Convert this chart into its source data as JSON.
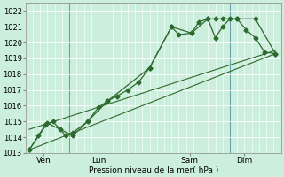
{
  "xlabel": "Pression niveau de la mer( hPa )",
  "bg_color": "#cceedd",
  "grid_color": "#aaddcc",
  "line_color": "#2d6a2d",
  "ylim": [
    1013,
    1022.5
  ],
  "xlim": [
    0,
    7.0
  ],
  "yticks": [
    1013,
    1014,
    1015,
    1016,
    1017,
    1018,
    1019,
    1020,
    1021,
    1022
  ],
  "xtick_labels": [
    "Ven",
    "Lun",
    "Sam",
    "Dim"
  ],
  "xtick_positions": [
    0.5,
    2.0,
    4.5,
    6.0
  ],
  "vlines_x": [
    1.2,
    3.5,
    5.6
  ],
  "series1_x": [
    0.1,
    0.35,
    0.55,
    0.75,
    0.95,
    1.1,
    1.3,
    1.7,
    2.0,
    2.25,
    2.5,
    2.8,
    3.1,
    3.4,
    4.0,
    4.2,
    4.55,
    4.75,
    5.0,
    5.2,
    5.4,
    5.6,
    5.8,
    6.05,
    6.3,
    6.55,
    6.85
  ],
  "series1_y": [
    1013.2,
    1014.1,
    1014.8,
    1015.0,
    1014.5,
    1014.1,
    1014.3,
    1015.0,
    1015.9,
    1016.3,
    1016.6,
    1017.0,
    1017.5,
    1018.4,
    1021.0,
    1020.5,
    1020.6,
    1021.3,
    1021.5,
    1020.3,
    1021.0,
    1021.5,
    1021.5,
    1020.8,
    1020.3,
    1019.4,
    1019.3
  ],
  "series2_x": [
    0.1,
    0.6,
    1.3,
    1.7,
    2.25,
    3.4,
    4.0,
    4.55,
    5.0,
    5.2,
    5.4,
    5.8,
    6.3,
    6.85
  ],
  "series2_y": [
    1013.2,
    1014.9,
    1014.1,
    1015.0,
    1016.3,
    1018.4,
    1021.0,
    1020.6,
    1021.5,
    1021.5,
    1021.5,
    1021.5,
    1021.5,
    1019.3
  ],
  "series3_x": [
    0.1,
    6.85
  ],
  "series3_y": [
    1014.5,
    1019.5
  ],
  "series4_x": [
    0.1,
    6.85
  ],
  "series4_y": [
    1013.2,
    1019.3
  ]
}
